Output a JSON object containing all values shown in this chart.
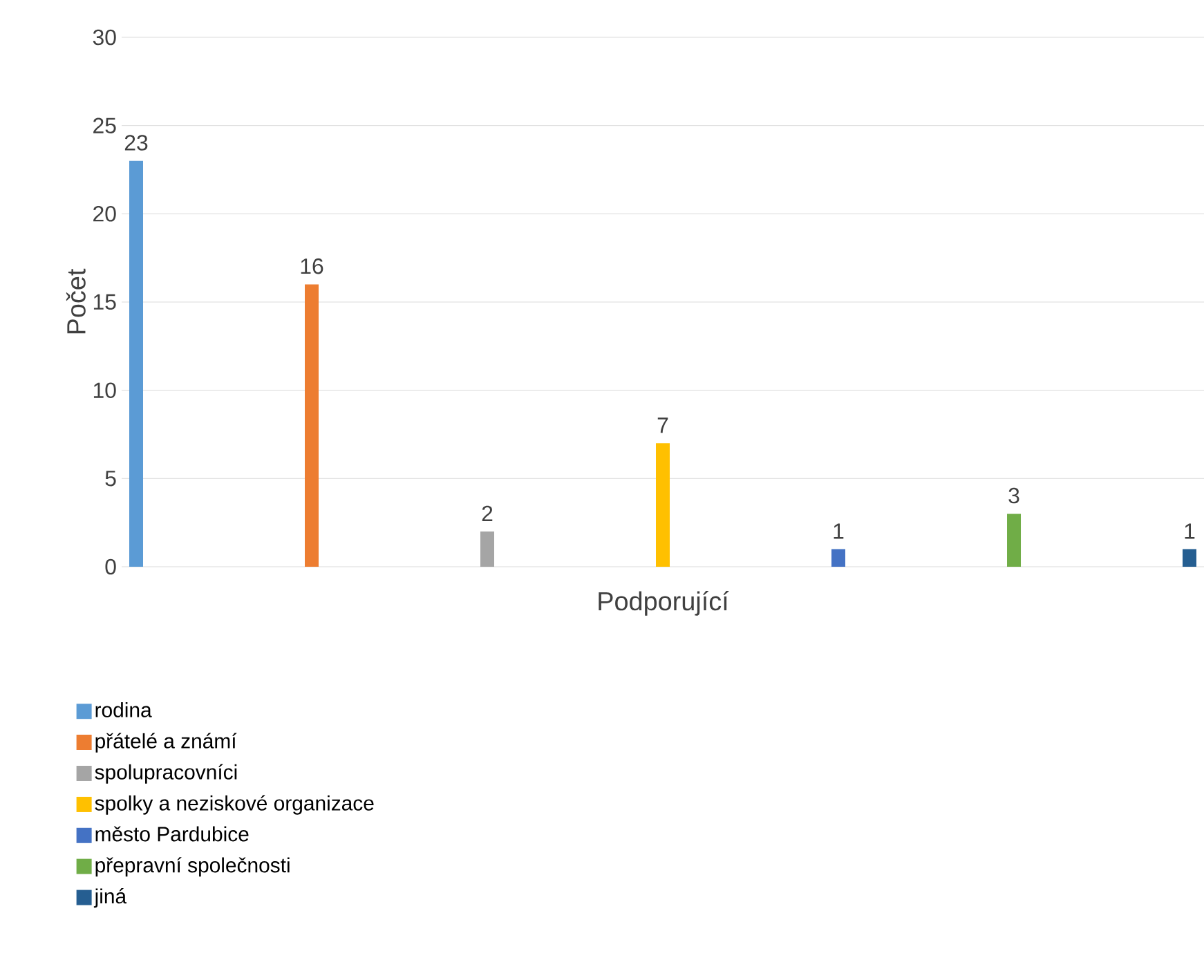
{
  "chart_data": {
    "type": "bar",
    "xlabel": "Podporující",
    "ylabel": "Počet",
    "categories": [
      null
    ],
    "series": [
      {
        "name": "rodina",
        "color": "#5b9bd5",
        "values": [
          23
        ]
      },
      {
        "name": "přátelé a známí",
        "color": "#ed7d31",
        "values": [
          16
        ]
      },
      {
        "name": "spolupracovníci",
        "color": "#a5a5a5",
        "values": [
          2
        ]
      },
      {
        "name": "spolky a neziskové organizace",
        "color": "#ffc000",
        "values": [
          7
        ]
      },
      {
        "name": "město Pardubice",
        "color": "#4472c4",
        "values": [
          1
        ]
      },
      {
        "name": "přepravní společnosti",
        "color": "#70ad47",
        "values": [
          3
        ]
      },
      {
        "name": "jiná",
        "color": "#255e91",
        "values": [
          1
        ]
      }
    ],
    "ylim": [
      0,
      30
    ],
    "yticks": [
      0,
      5,
      10,
      15,
      20,
      25,
      30
    ],
    "grid": "y",
    "legend": "bottom",
    "data_labels": true
  }
}
